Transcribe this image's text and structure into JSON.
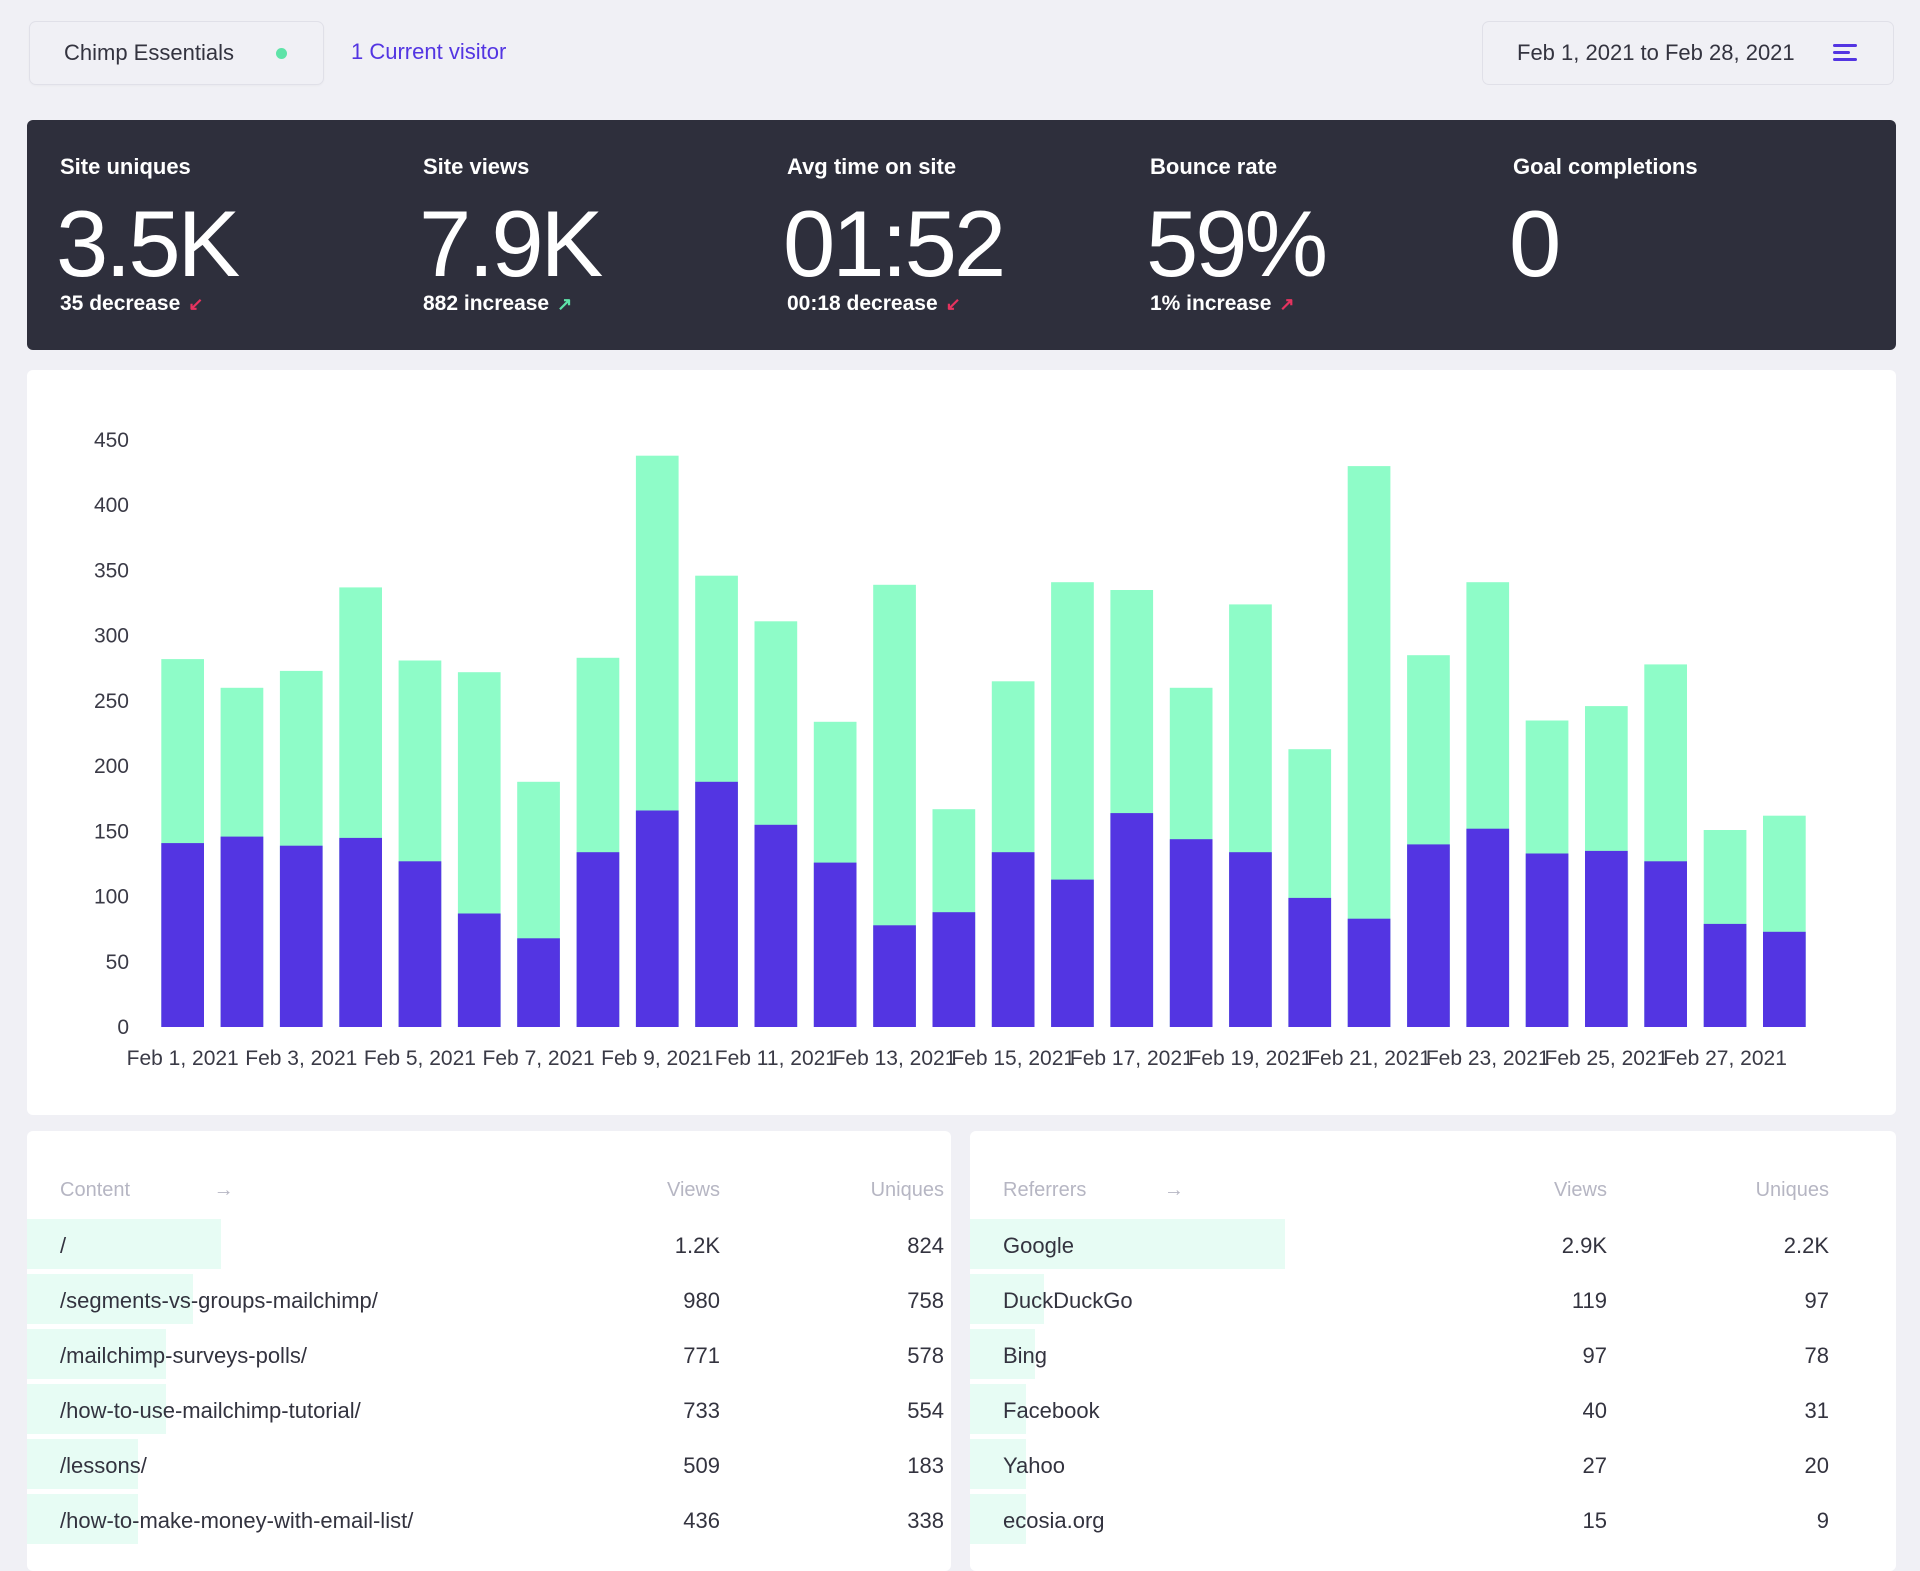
{
  "header": {
    "site_name": "Chimp Essentials",
    "status_color": "#5ee3a8",
    "visitors": "1 Current visitor",
    "date_range": "Feb 1, 2021 to Feb 28, 2021"
  },
  "stats": [
    {
      "label": "Site uniques",
      "value": "3.5K",
      "change": "35 decrease",
      "direction": "down"
    },
    {
      "label": "Site views",
      "value": "7.9K",
      "change": "882 increase",
      "direction": "up"
    },
    {
      "label": "Avg time on site",
      "value": "01:52",
      "change": "00:18 decrease",
      "direction": "down"
    },
    {
      "label": "Bounce rate",
      "value": "59%",
      "change": "1% increase",
      "direction": "up-bad"
    },
    {
      "label": "Goal completions",
      "value": "0",
      "change": "",
      "direction": ""
    }
  ],
  "colors": {
    "views": "#8efcc8",
    "uniques": "#5335e2",
    "up": "#5ee3a8",
    "down": "#e6335f",
    "accent": "#5335e2"
  },
  "chart_data": {
    "type": "bar",
    "stacked": false,
    "ylim": [
      0,
      450
    ],
    "yticks": [
      0,
      50,
      100,
      150,
      200,
      250,
      300,
      350,
      400,
      450
    ],
    "categories": [
      "Feb 1, 2021",
      "Feb 2, 2021",
      "Feb 3, 2021",
      "Feb 4, 2021",
      "Feb 5, 2021",
      "Feb 6, 2021",
      "Feb 7, 2021",
      "Feb 8, 2021",
      "Feb 9, 2021",
      "Feb 10, 2021",
      "Feb 11, 2021",
      "Feb 12, 2021",
      "Feb 13, 2021",
      "Feb 14, 2021",
      "Feb 15, 2021",
      "Feb 16, 2021",
      "Feb 17, 2021",
      "Feb 18, 2021",
      "Feb 19, 2021",
      "Feb 20, 2021",
      "Feb 21, 2021",
      "Feb 22, 2021",
      "Feb 23, 2021",
      "Feb 24, 2021",
      "Feb 25, 2021",
      "Feb 26, 2021",
      "Feb 27, 2021",
      "Feb 28, 2021"
    ],
    "xtick_labels": [
      "Feb 1, 2021",
      "Feb 3, 2021",
      "Feb 5, 2021",
      "Feb 7, 2021",
      "Feb 9, 2021",
      "Feb 11, 2021",
      "Feb 13, 2021",
      "Feb 15, 2021",
      "Feb 17, 2021",
      "Feb 19, 2021",
      "Feb 21, 2021",
      "Feb 23, 2021",
      "Feb 25, 2021",
      "Feb 27, 2021"
    ],
    "series": [
      {
        "values": [
          282,
          260,
          273,
          337,
          281,
          272,
          188,
          283,
          438,
          346,
          311,
          234,
          339,
          167,
          265,
          341,
          335,
          260,
          324,
          213,
          430,
          285,
          341,
          235,
          246,
          278,
          151,
          162
        ]
      },
      {
        "values": [
          141,
          146,
          139,
          145,
          127,
          87,
          68,
          134,
          166,
          188,
          155,
          126,
          78,
          88,
          134,
          113,
          164,
          144,
          134,
          99,
          83,
          140,
          152,
          133,
          135,
          127,
          79,
          73
        ]
      }
    ]
  },
  "content_table": {
    "title": "Content",
    "col_views": "Views",
    "col_uniques": "Uniques",
    "rows": [
      {
        "name": "/",
        "views": "1.2K",
        "uniques": "824",
        "share": 0.21
      },
      {
        "name": "/segments-vs-groups-mailchimp/",
        "views": "980",
        "uniques": "758",
        "share": 0.18
      },
      {
        "name": "/mailchimp-surveys-polls/",
        "views": "771",
        "uniques": "578",
        "share": 0.15
      },
      {
        "name": "/how-to-use-mailchimp-tutorial/",
        "views": "733",
        "uniques": "554",
        "share": 0.15
      },
      {
        "name": "/lessons/",
        "views": "509",
        "uniques": "183",
        "share": 0.12
      },
      {
        "name": "/how-to-make-money-with-email-list/",
        "views": "436",
        "uniques": "338",
        "share": 0.12
      }
    ]
  },
  "referrers_table": {
    "title": "Referrers",
    "col_views": "Views",
    "col_uniques": "Uniques",
    "rows": [
      {
        "name": "Google",
        "views": "2.9K",
        "uniques": "2.2K",
        "share": 0.34
      },
      {
        "name": "DuckDuckGo",
        "views": "119",
        "uniques": "97",
        "share": 0.08
      },
      {
        "name": "Bing",
        "views": "97",
        "uniques": "78",
        "share": 0.07
      },
      {
        "name": "Facebook",
        "views": "40",
        "uniques": "31",
        "share": 0.06
      },
      {
        "name": "Yahoo",
        "views": "27",
        "uniques": "20",
        "share": 0.06
      },
      {
        "name": "ecosia.org",
        "views": "15",
        "uniques": "9",
        "share": 0.06
      }
    ]
  }
}
